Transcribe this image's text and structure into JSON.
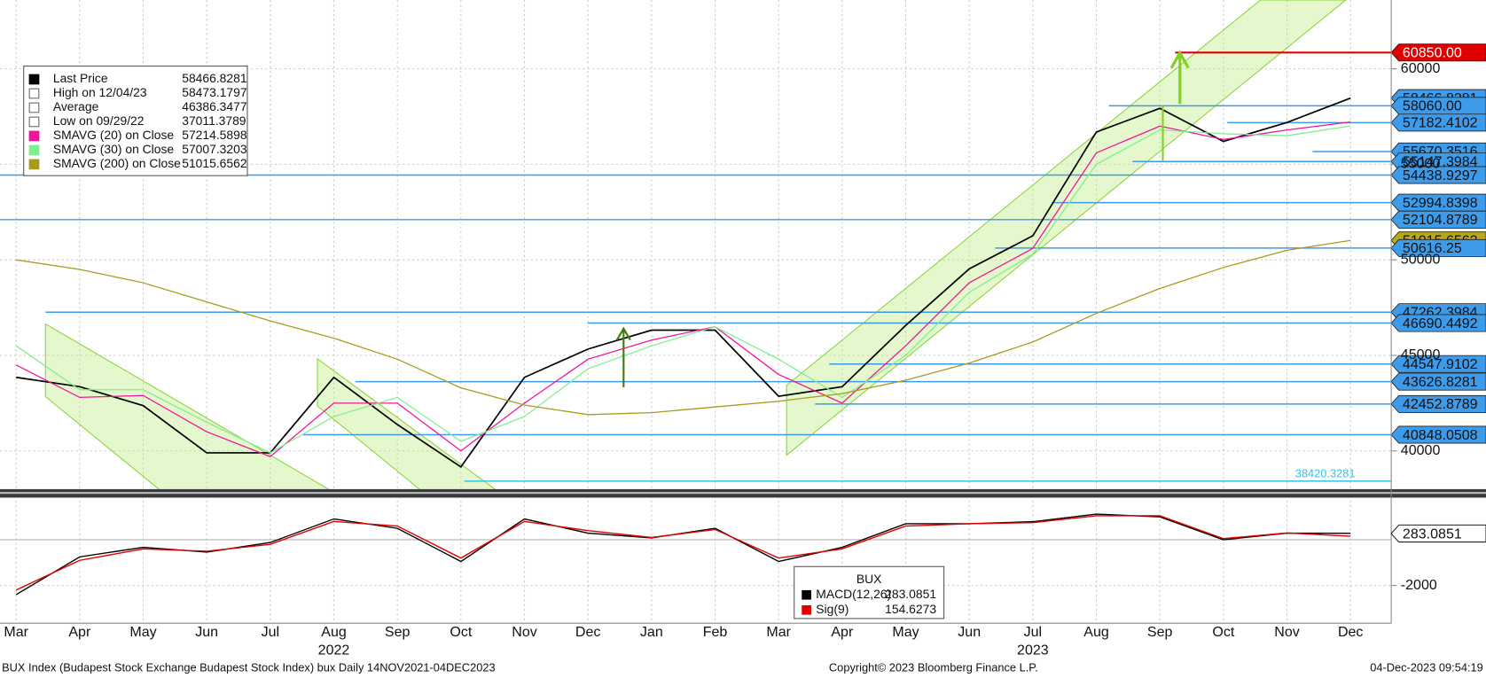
{
  "chart_data": [
    {
      "type": "line",
      "categories": [
        "Mar",
        "Apr",
        "May",
        "Jun",
        "Jul",
        "Aug",
        "Sep",
        "Oct",
        "Nov",
        "Dec",
        "Jan",
        "Feb",
        "Mar",
        "Apr",
        "May",
        "Jun",
        "Jul",
        "Aug",
        "Sep",
        "Oct",
        "Nov",
        "Dec"
      ],
      "years": [
        "2022",
        "2023"
      ],
      "ylim": [
        37900,
        63600
      ],
      "yticks": [
        40000,
        45000,
        50000,
        55000,
        60000
      ],
      "grid": true,
      "series": [
        {
          "name": "Last Price",
          "color": "#000000",
          "values": [
            43850,
            43360,
            42370,
            39900,
            39900,
            43850,
            41380,
            39160,
            43850,
            45330,
            46320,
            46320,
            42860,
            43360,
            46570,
            49530,
            51260,
            56690,
            57930,
            56200,
            57190,
            58466.8281
          ]
        },
        {
          "name": "SMAVG (20)  on Close",
          "color": "#f0159a",
          "values": [
            44500,
            42800,
            42900,
            41000,
            39700,
            42500,
            42500,
            40000,
            42500,
            44800,
            45800,
            46500,
            44000,
            42500,
            45500,
            48800,
            50600,
            55600,
            57000,
            56300,
            56800,
            57214.5898
          ]
        },
        {
          "name": "SMAVG (30)  on Close",
          "color": "#80ee90",
          "values": [
            45500,
            43200,
            43200,
            41500,
            39900,
            41800,
            42800,
            40500,
            41800,
            44300,
            45500,
            46500,
            44800,
            42800,
            45000,
            48300,
            50300,
            55000,
            56800,
            56600,
            56500,
            57007.3203
          ]
        },
        {
          "name": "SMAVG (200)  on Close",
          "color": "#a89a1c",
          "values": [
            50000,
            49500,
            48800,
            47800,
            46800,
            45900,
            44800,
            43300,
            42400,
            41900,
            42000,
            42300,
            42600,
            43000,
            43700,
            44600,
            45700,
            47200,
            48500,
            49600,
            50500,
            51015.6562
          ]
        }
      ],
      "legend_items": [
        {
          "label": "Last Price",
          "value": 58466.8281,
          "color": "#000000"
        },
        {
          "label": "High on 12/04/23",
          "value": 58473.1797,
          "color": "#666666"
        },
        {
          "label": "Average",
          "value": 46386.3477,
          "color": "#666666"
        },
        {
          "label": "Low on 09/29/22",
          "value": 37011.3789,
          "color": "#666666"
        },
        {
          "label": "SMAVG (20)  on Close",
          "value": 57214.5898,
          "color": "#f0159a"
        },
        {
          "label": "SMAVG (30)  on Close",
          "value": 57007.3203,
          "color": "#80ee90"
        },
        {
          "label": "SMAVG (200)  on Close",
          "value": 51015.6562,
          "color": "#a89a1c"
        }
      ],
      "level_color": "#3d9be9",
      "levels": [
        {
          "value": 60850,
          "label": "60850.00",
          "color": "#e00000"
        },
        {
          "value": 58466.8281
        },
        {
          "value": 58060,
          "label": "58060.00"
        },
        {
          "value": 57182.4102
        },
        {
          "value": 55670.3516
        },
        {
          "value": 55147.3984
        },
        {
          "value": 54438.9297
        },
        {
          "value": 52994.8398
        },
        {
          "value": 52104.8789
        },
        {
          "value": 51015.6562,
          "color": "#b8a81c"
        },
        {
          "value": 50616.25
        },
        {
          "value": 47262.3984
        },
        {
          "value": 46690.4492
        },
        {
          "value": 44547.9102
        },
        {
          "value": 43626.8281
        },
        {
          "value": 42452.8789
        },
        {
          "value": 40848.0508
        },
        {
          "value": 38420.3281,
          "color": "#2ec4ee"
        }
      ]
    },
    {
      "type": "line",
      "ylim": [
        -3650,
        1800
      ],
      "yticks": [
        -2000
      ],
      "legend_title": "BUX",
      "series": [
        {
          "name": "MACD(12,26)",
          "color": "#000000",
          "values": [
            -2400,
            -750,
            -330,
            -540,
            -120,
            910,
            500,
            -950,
            910,
            290,
            80,
            500,
            -950,
            -330,
            700,
            700,
            790,
            1120,
            1000,
            0,
            290,
            283.0851
          ]
        },
        {
          "name": "Sig(9)",
          "color": "#e00000",
          "values": [
            -2200,
            -900,
            -400,
            -500,
            -200,
            800,
            600,
            -800,
            800,
            400,
            100,
            450,
            -800,
            -400,
            600,
            700,
            750,
            1050,
            1050,
            50,
            300,
            154.6273
          ]
        }
      ],
      "legend_values": [
        283.0851,
        154.6273
      ]
    }
  ],
  "footer": {
    "left": "BUX Index (Budapest Stock Exchange Budapest Stock Index) bux  Daily 14NOV2021-04DEC2023",
    "center": "Copyright© 2023 Bloomberg Finance L.P.",
    "right": "04-Dec-2023 09:54:19"
  }
}
